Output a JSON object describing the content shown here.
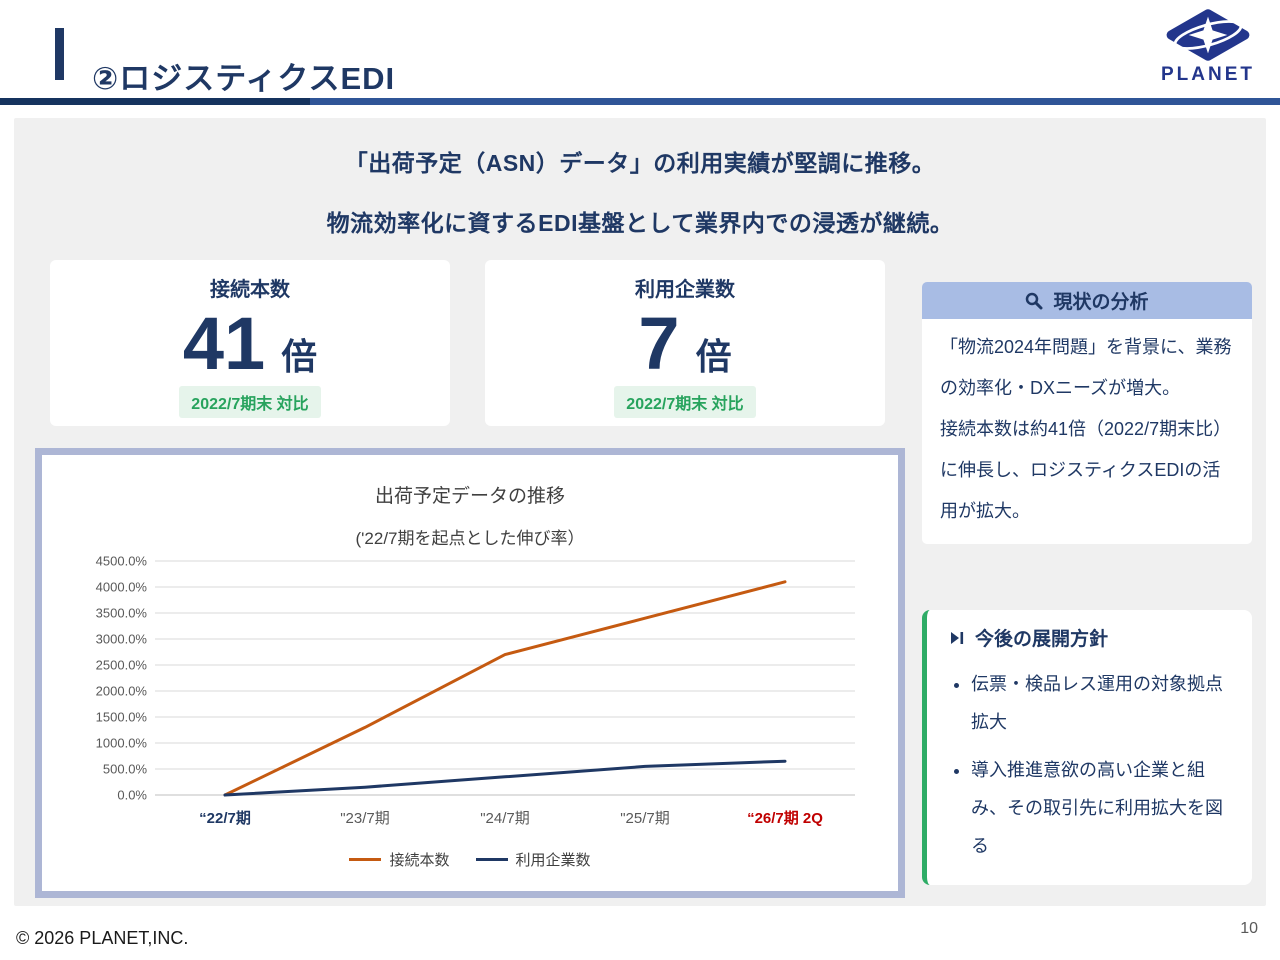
{
  "header": {
    "title": "②ロジスティクスEDI",
    "logo_text": "PLANET"
  },
  "main": {
    "lead_line1": "「出荷予定（ASN）データ」の利用実績が堅調に推移。",
    "lead_line2": "物流効率化に資するEDI基盤として業界内での浸透が継続。"
  },
  "metrics": [
    {
      "label": "接続本数",
      "value": "41",
      "unit": "倍",
      "note": "2022/7期末 対比"
    },
    {
      "label": "利用企業数",
      "value": "7",
      "unit": "倍",
      "note": "2022/7期末 対比"
    }
  ],
  "analysis": {
    "icon": "magnifier-icon",
    "title": "現状の分析",
    "paragraph1": "「物流2024年問題」を背景に、業務の効率化・DXニーズが増大。",
    "paragraph2": "接続本数は約41倍（2022/7期末比）に伸長し、ロジスティクスEDIの活用が拡大。"
  },
  "policy": {
    "icon": "play-next-icon",
    "title": "今後の展開方針",
    "items": [
      "伝票・検品レス運用の対象拠点拡大",
      "導入推進意欲の高い企業と組み、その取引先に利用拡大を図る"
    ]
  },
  "chart_data": {
    "type": "line",
    "title": "出荷予定データの推移",
    "subtitle": "('22/7期を起点とした伸び率）",
    "categories": [
      "“22/7期",
      "\"23/7期",
      "\"24/7期",
      "\"25/7期",
      "“26/7期 2Q"
    ],
    "series": [
      {
        "name": "接続本数",
        "color": "#c55a11",
        "values": [
          0,
          1300,
          2700,
          3400,
          4100
        ]
      },
      {
        "name": "利用企業数",
        "color": "#1f3864",
        "values": [
          0,
          150,
          350,
          550,
          650
        ]
      }
    ],
    "ylim": [
      0,
      4500
    ],
    "ytick_step": 500,
    "ytick_suffix": ".0%",
    "grid": true,
    "legend_position": "bottom",
    "x_label_emphasis": {
      "first_color": "#1f3864",
      "last_color": "#c00000",
      "middle_color": "#595959"
    }
  },
  "footer": {
    "copyright": "© 2026 PLANET,INC.",
    "page_number": "10"
  },
  "colors": {
    "accent_navy": "#1f3864",
    "accent_orange": "#c55a11",
    "accent_red": "#c00000",
    "accent_green": "#2eac66",
    "badge_green_text": "#27a35d",
    "badge_green_bg": "#e6f4eb",
    "analysis_header_bg": "#a8bce4",
    "chart_frame_border": "#adb6d5",
    "panel_bg": "#f0f0f0"
  }
}
